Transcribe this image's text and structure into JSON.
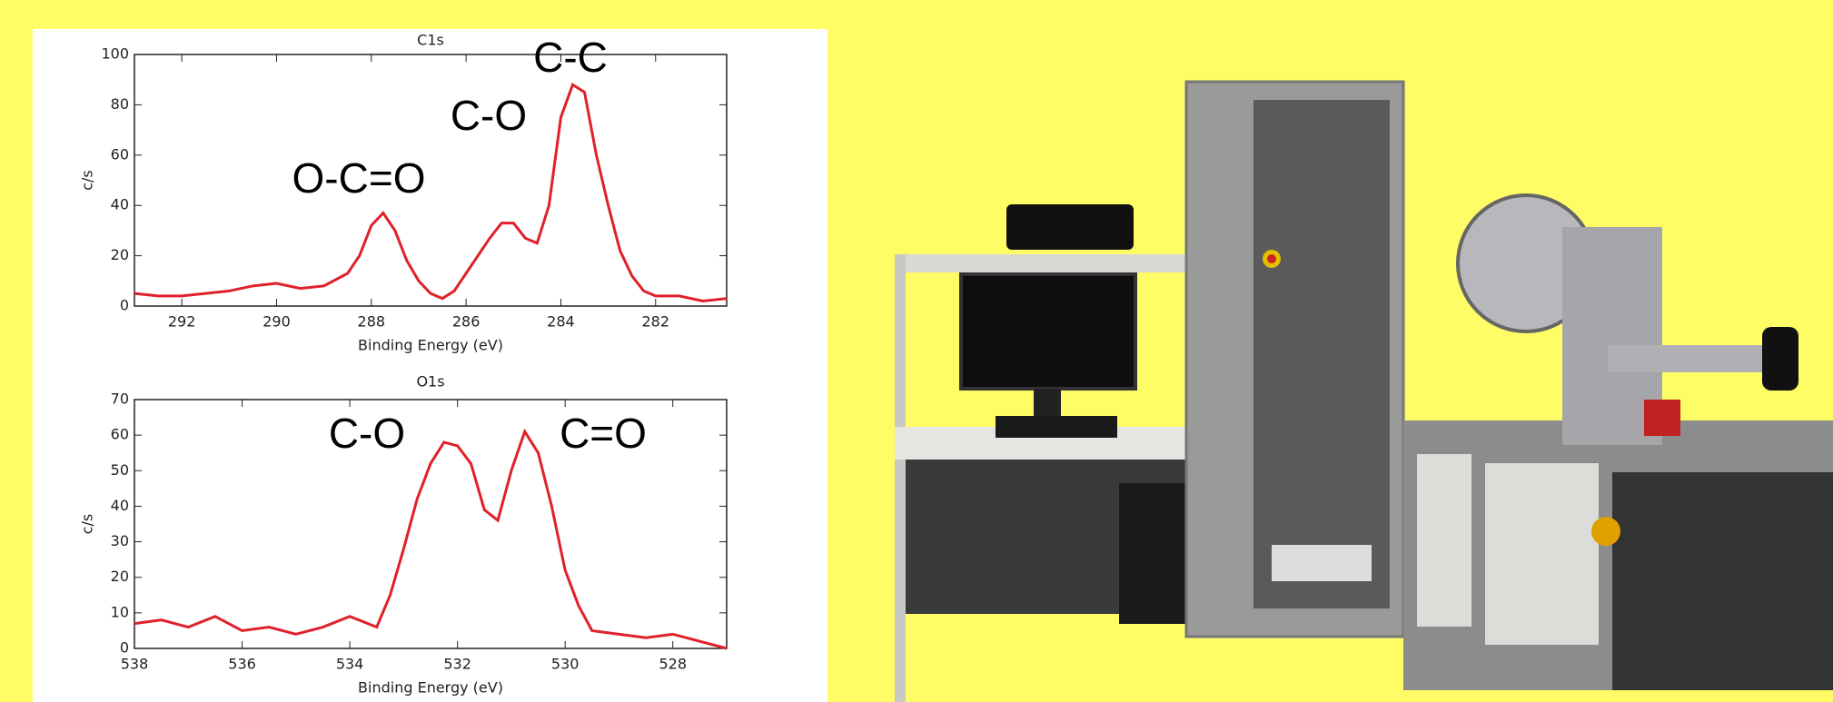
{
  "chart_data": [
    {
      "type": "line",
      "title": "C1s",
      "x_label": "Binding Energy (eV)",
      "y_label": "c/s",
      "color": "#e0202a",
      "x": [
        293,
        292.5,
        292,
        291.5,
        291,
        290.5,
        290,
        289.5,
        289,
        288.5,
        288.25,
        288,
        287.75,
        287.5,
        287.25,
        287,
        286.75,
        286.5,
        286.25,
        286,
        285.75,
        285.5,
        285.25,
        285,
        284.75,
        284.5,
        284.25,
        284,
        283.75,
        283.5,
        283.25,
        283,
        282.75,
        282.5,
        282.25,
        282,
        281.5,
        281,
        280.5
      ],
      "values": [
        5,
        4,
        4,
        5,
        6,
        8,
        9,
        7,
        8,
        13,
        20,
        32,
        37,
        30,
        18,
        10,
        5,
        3,
        6,
        13,
        20,
        27,
        33,
        33,
        27,
        25,
        40,
        75,
        88,
        85,
        60,
        40,
        22,
        12,
        6,
        4,
        4,
        2,
        3
      ],
      "xlim": [
        293,
        280.5
      ],
      "xticks": [
        292,
        290,
        288,
        286,
        284,
        282
      ],
      "ylim": [
        0,
        100
      ],
      "yticks": [
        0,
        20,
        40,
        60,
        80,
        100
      ],
      "annotations": [
        "O-C=O",
        "C-O",
        "C-C"
      ]
    },
    {
      "type": "line",
      "title": "O1s",
      "x_label": "Binding Energy (eV)",
      "y_label": "c/s",
      "color": "#e0202a",
      "x": [
        538,
        537.5,
        537,
        536.5,
        536,
        535.5,
        535,
        534.5,
        534,
        533.5,
        533.25,
        533,
        532.75,
        532.5,
        532.25,
        532,
        531.75,
        531.5,
        531.25,
        531,
        530.75,
        530.5,
        530.25,
        530,
        529.75,
        529.5,
        529,
        528.5,
        528,
        527.5,
        527
      ],
      "values": [
        7,
        8,
        6,
        9,
        5,
        6,
        4,
        6,
        9,
        6,
        15,
        28,
        42,
        52,
        58,
        57,
        52,
        39,
        36,
        50,
        61,
        55,
        40,
        22,
        12,
        5,
        4,
        3,
        4,
        2,
        0
      ],
      "xlim": [
        538,
        527
      ],
      "xticks": [
        538,
        536,
        534,
        532,
        530,
        528
      ],
      "ylim": [
        0,
        70
      ],
      "yticks": [
        0,
        10,
        20,
        30,
        40,
        50,
        60,
        70
      ],
      "annotations": [
        "C-O",
        "C=O"
      ]
    }
  ]
}
